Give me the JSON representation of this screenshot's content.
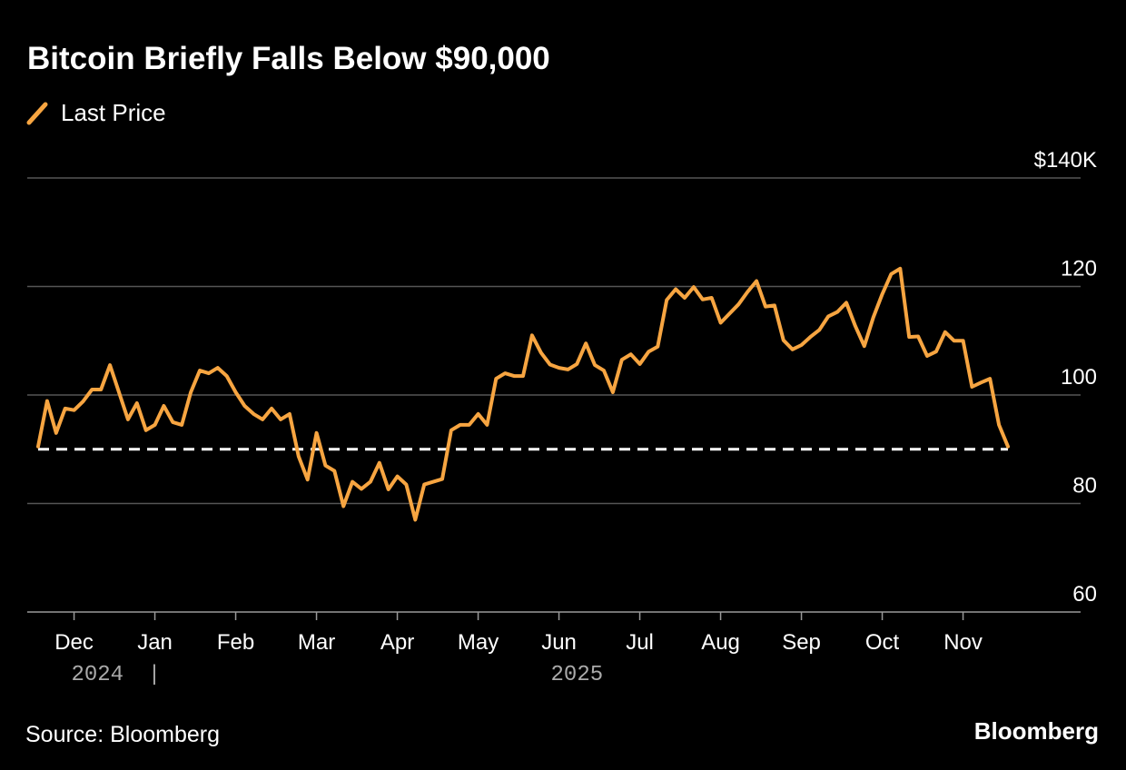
{
  "chart_data": {
    "type": "line",
    "title": "Bitcoin Briefly Falls Below $90,000",
    "source": "Source: Bloomberg",
    "brand": "Bloomberg",
    "categories": [
      null,
      null,
      null,
      null,
      "Dec",
      null,
      null,
      null,
      null,
      null,
      null,
      null,
      null,
      "Jan",
      null,
      null,
      null,
      null,
      null,
      null,
      null,
      null,
      "Feb",
      null,
      null,
      null,
      null,
      null,
      null,
      null,
      null,
      "Mar",
      null,
      null,
      null,
      null,
      null,
      null,
      null,
      null,
      "Apr",
      null,
      null,
      null,
      null,
      null,
      null,
      null,
      null,
      "May",
      null,
      null,
      null,
      null,
      null,
      null,
      null,
      null,
      "Jun",
      null,
      null,
      null,
      null,
      null,
      null,
      null,
      null,
      "Jul",
      null,
      null,
      null,
      null,
      null,
      null,
      null,
      null,
      "Aug",
      null,
      null,
      null,
      null,
      null,
      null,
      null,
      null,
      "Sep",
      null,
      null,
      null,
      null,
      null,
      null,
      null,
      null,
      "Oct",
      null,
      null,
      null,
      null,
      null,
      null,
      null,
      null,
      "Nov",
      null,
      null,
      null,
      null,
      null
    ],
    "x_groups": [
      "2024",
      "2025"
    ],
    "series": [
      {
        "name": "Last Price",
        "color": "#f7a541",
        "values": [
          90.5,
          98.9,
          93,
          97.5,
          97.2,
          98.8,
          101,
          101,
          105.5,
          100.5,
          95.5,
          98.5,
          93.5,
          94.5,
          98,
          95,
          94.5,
          100.5,
          104.5,
          104,
          105,
          103.5,
          100.5,
          98,
          96.5,
          95.5,
          97.5,
          95.5,
          96.5,
          88.7,
          84.4,
          93,
          87,
          86,
          79.5,
          84,
          82.7,
          84,
          87.5,
          82.6,
          85,
          83.5,
          77,
          83.5,
          84,
          84.5,
          93.5,
          94.5,
          94.5,
          96.5,
          94.5,
          103,
          104,
          103.5,
          103.5,
          111,
          107.8,
          105.6,
          105,
          104.7,
          105.7,
          109.5,
          105.5,
          104.5,
          100.5,
          106.5,
          107.5,
          105.7,
          108,
          108.9,
          117.5,
          119.5,
          117.9,
          119.9,
          117.6,
          117.9,
          113.3,
          115,
          116.7,
          119,
          121,
          116.3,
          116.5,
          110.1,
          108.4,
          109.2,
          110.7,
          112,
          114.5,
          115.3,
          117,
          112.7,
          109,
          114.3,
          118.6,
          122.3,
          123.3,
          110.7,
          110.8,
          107.2,
          108,
          111.6,
          110,
          110,
          101.5,
          102.3,
          103,
          94.5,
          90.5
        ]
      }
    ],
    "reference_line": 90,
    "ylim": [
      60,
      140
    ],
    "yticks": [
      60,
      80,
      100,
      120,
      {
        "value": 140,
        "label": "$140K"
      }
    ],
    "grid": true
  }
}
